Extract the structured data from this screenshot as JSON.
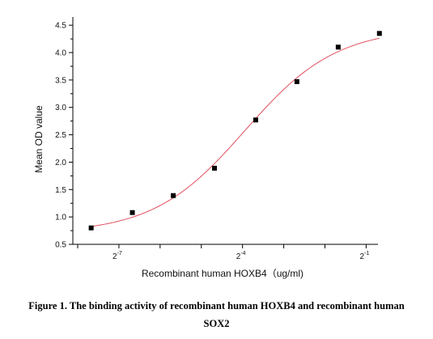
{
  "chart_data": {
    "type": "scatter",
    "title": "",
    "xlabel": "Recombinant human HOXB4（ug/ml)",
    "ylabel": "Mean OD value",
    "x_scale": "log2",
    "xlim": [
      0.0036,
      0.61
    ],
    "ylim": [
      0.5,
      4.65
    ],
    "y_ticks": [
      "0.5",
      "1.0",
      "1.5",
      "2.0",
      "2.5",
      "3.0",
      "3.5",
      "4.0",
      "4.5"
    ],
    "x_tick_labels": [
      {
        "base": "2",
        "exp": "-7",
        "value": 0.0078125
      },
      {
        "base": "2",
        "exp": "-4",
        "value": 0.0625
      },
      {
        "base": "2",
        "exp": "-1",
        "value": 0.5
      }
    ],
    "x": [
      0.0049,
      0.0098,
      0.0195,
      0.039,
      0.078,
      0.156,
      0.3125,
      0.625
    ],
    "y": [
      0.8,
      1.08,
      1.39,
      1.89,
      2.77,
      3.47,
      4.1,
      4.35
    ],
    "fit_curve": {
      "type": "4PL",
      "bottom": 0.7,
      "top": 4.45,
      "ec50": 0.065,
      "hill": 1.3,
      "color": "#e05060"
    },
    "marker_color": "#000000",
    "grid": false,
    "legend": "none"
  },
  "caption": {
    "line1": "Figure 1. The binding activity of recombinant human HOXB4 and recombinant human",
    "line2": "SOX2"
  }
}
